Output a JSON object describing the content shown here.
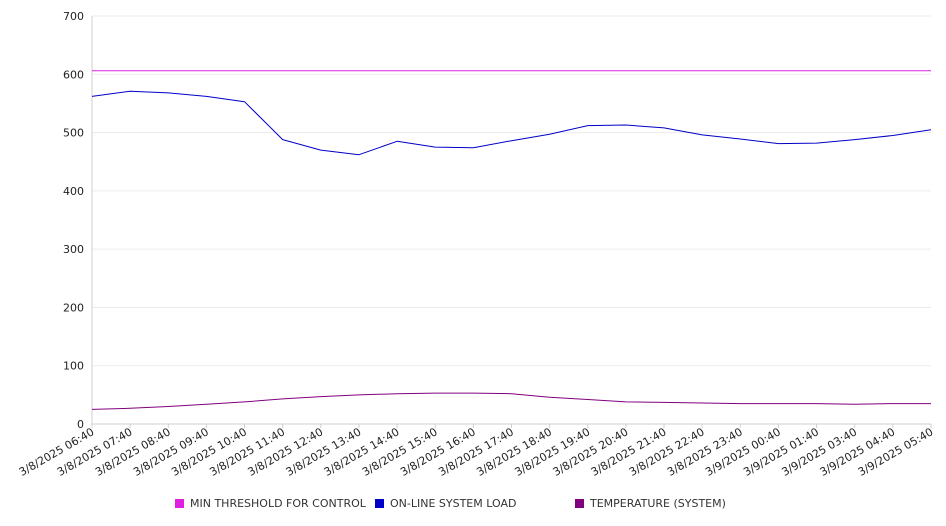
{
  "chart_data": {
    "type": "line",
    "ylim": [
      0,
      700
    ],
    "y_ticks": [
      "0",
      "100",
      "200",
      "300",
      "400",
      "500",
      "600",
      "700"
    ],
    "x_tick_labels": [
      "3/8/2025 06:40",
      "3/8/2025 07:40",
      "3/8/2025 08:40",
      "3/8/2025 09:40",
      "3/8/2025 10:40",
      "3/8/2025 11:40",
      "3/8/2025 12:40",
      "3/8/2025 13:40",
      "3/8/2025 14:40",
      "3/8/2025 15:40",
      "3/8/2025 16:40",
      "3/8/2025 17:40",
      "3/8/2025 18:40",
      "3/8/2025 19:40",
      "3/8/2025 20:40",
      "3/8/2025 21:40",
      "3/8/2025 22:40",
      "3/8/2025 23:40",
      "3/9/2025 00:40",
      "3/9/2025 01:40",
      "3/9/2025 03:40",
      "3/9/2025 04:40",
      "3/9/2025 05:40"
    ],
    "x": [
      "3/8/2025 06:40",
      "3/8/2025 07:40",
      "3/8/2025 08:40",
      "3/8/2025 09:40",
      "3/8/2025 10:40",
      "3/8/2025 11:40",
      "3/8/2025 12:40",
      "3/8/2025 13:40",
      "3/8/2025 14:40",
      "3/8/2025 15:40",
      "3/8/2025 16:40",
      "3/8/2025 17:40",
      "3/8/2025 18:40",
      "3/8/2025 19:40",
      "3/8/2025 20:40",
      "3/8/2025 21:40",
      "3/8/2025 22:40",
      "3/8/2025 23:40",
      "3/9/2025 00:40",
      "3/9/2025 01:40",
      "3/9/2025 03:40",
      "3/9/2025 04:40",
      "3/9/2025 05:40"
    ],
    "grid": true,
    "legend_position": "bottom",
    "series": [
      {
        "name": "MIN THRESHOLD FOR CONTROL",
        "color": "#e020e0",
        "values": [
          606,
          606,
          606,
          606,
          606,
          606,
          606,
          606,
          606,
          606,
          606,
          606,
          606,
          606,
          606,
          606,
          606,
          606,
          606,
          606,
          606,
          606,
          606
        ]
      },
      {
        "name": "ON-LINE SYSTEM LOAD",
        "color": "#0000c8",
        "values": [
          562,
          571,
          568,
          562,
          553,
          488,
          470,
          462,
          485,
          475,
          474,
          486,
          497,
          512,
          513,
          508,
          496,
          489,
          481,
          482,
          488,
          495,
          505
        ]
      },
      {
        "name": "TEMPERATURE (SYSTEM)",
        "color": "#800080",
        "values": [
          25,
          27,
          30,
          34,
          38,
          43,
          47,
          50,
          52,
          53,
          53,
          52,
          46,
          42,
          38,
          37,
          36,
          35,
          35,
          35,
          34,
          35,
          35
        ]
      }
    ]
  }
}
